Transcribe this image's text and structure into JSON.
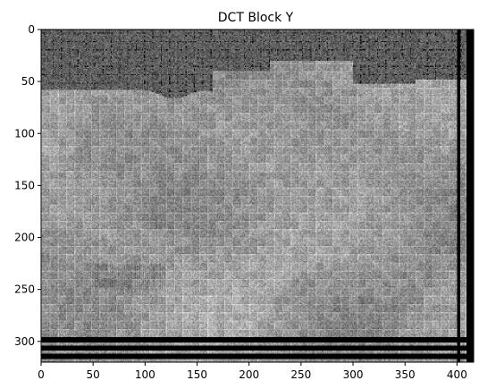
{
  "chart_data": {
    "type": "heatmap",
    "title": "DCT Block Y",
    "xlabel": "",
    "ylabel": "",
    "colormap": "gray",
    "image_size": [
      416,
      320
    ],
    "block_size": 8,
    "xlim": [
      0,
      416
    ],
    "ylim": [
      320,
      0
    ],
    "y_axis_inverted": true,
    "grid": false,
    "xticks": [
      0,
      50,
      100,
      150,
      200,
      250,
      300,
      350,
      400
    ],
    "yticks": [
      0,
      50,
      100,
      150,
      200,
      250,
      300
    ],
    "x_tick_labels": [
      "0",
      "50",
      "100",
      "150",
      "200",
      "250",
      "300",
      "350",
      "400"
    ],
    "y_tick_labels": [
      "0",
      "50",
      "100",
      "150",
      "200",
      "250",
      "300"
    ],
    "dark_top_band_rows_max": 65,
    "black_columns_from": 400,
    "black_rows_from": 296,
    "colors": {
      "background_black": "#000000",
      "mid_gray": "#8f8f8f",
      "light_gray": "#b4b4b4",
      "dark_gray": "#5e5e5e"
    }
  }
}
